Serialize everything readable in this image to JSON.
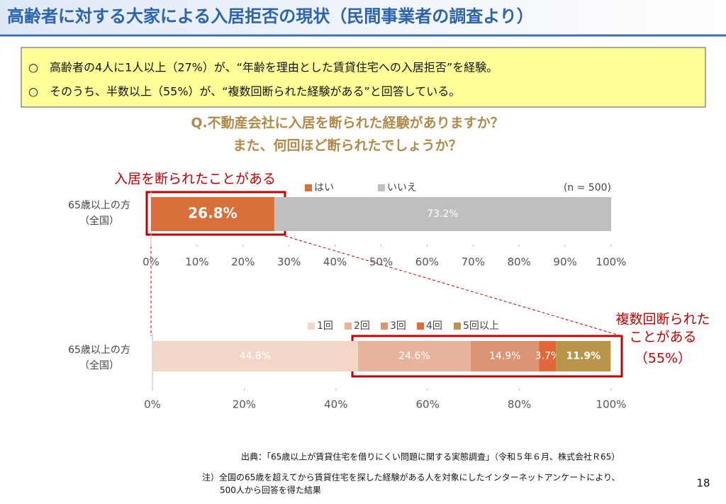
{
  "title": "高齢者に対する大家による入居拒否の現状（民間事業者の調査より）",
  "summary": [
    "○　高齢者の4人に1人以上（27%）が、“年齢を理由とした賃貸住宅への入居拒否”を経験。",
    "○　そのうち、半数以上（55%）が、“複数回断られた経験がある”と回答している。"
  ],
  "question": [
    "Q.不動産会社に入居を断られた経験がありますか？",
    "また、何回ほど断られたでしょうか？"
  ],
  "chart_data": [
    {
      "type": "stacked-bar-horizontal",
      "categories": [
        [
          "65歳以上の方",
          "（全国）"
        ]
      ],
      "series": [
        {
          "name": "はい",
          "color": "#d9703c",
          "values": [
            26.8
          ],
          "value_labels": [
            "26.8%"
          ]
        },
        {
          "name": "いいえ",
          "color": "#bfbfbf",
          "values": [
            73.2
          ],
          "value_labels": [
            "73.2%"
          ]
        }
      ],
      "note": "(n = 500)",
      "annotation": [
        "入居を断られたことがある"
      ],
      "xlim": [
        0,
        100
      ],
      "xticks": [
        {
          "value": 0,
          "label": "0%"
        },
        {
          "value": 10,
          "label": "10%"
        },
        {
          "value": 20,
          "label": "20%"
        },
        {
          "value": 30,
          "label": "30%"
        },
        {
          "value": 40,
          "label": "40%"
        },
        {
          "value": 50,
          "label": "50%"
        },
        {
          "value": 60,
          "label": "60%"
        },
        {
          "value": 70,
          "label": "70%"
        },
        {
          "value": 80,
          "label": "80%"
        },
        {
          "value": 90,
          "label": "90%"
        },
        {
          "value": 100,
          "label": "100%"
        }
      ]
    },
    {
      "type": "stacked-bar-horizontal",
      "categories": [
        [
          "65歳以上の方",
          "（全国）"
        ]
      ],
      "series": [
        {
          "name": "1回",
          "color": "#f2d7c9",
          "values": [
            44.8
          ],
          "value_labels": [
            "44.8%"
          ]
        },
        {
          "name": "2回",
          "color": "#e6b49c",
          "values": [
            24.6
          ],
          "value_labels": [
            "24.6%"
          ]
        },
        {
          "name": "3回",
          "color": "#dc9474",
          "values": [
            14.9
          ],
          "value_labels": [
            "14.9%"
          ]
        },
        {
          "name": "4回",
          "color": "#e0683a",
          "values": [
            3.7
          ],
          "value_labels": [
            "3.7%"
          ]
        },
        {
          "name": "5回以上",
          "color": "#b8954a",
          "values": [
            11.9
          ],
          "value_labels": [
            "11.9%"
          ]
        }
      ],
      "annotation": [
        "複数回断られた",
        "ことがある",
        "（55%）"
      ],
      "xlim": [
        0,
        100
      ],
      "xticks": [
        {
          "value": 0,
          "label": "0%"
        },
        {
          "value": 20,
          "label": "20%"
        },
        {
          "value": 40,
          "label": "40%"
        },
        {
          "value": 60,
          "label": "60%"
        },
        {
          "value": 80,
          "label": "80%"
        },
        {
          "value": 100,
          "label": "100%"
        }
      ]
    }
  ],
  "footer": [
    "出典：「65歳以上が賃貸住宅を借りにくい問題に関する実態調査」（令和５年６月、株式会社Ｒ65）",
    "注）全国の65歳を超えてから賃貸住宅を探した経験がある人を対象にしたインターネットアンケートにより、",
    "500人から回答を得た結果"
  ],
  "page_number": "18"
}
